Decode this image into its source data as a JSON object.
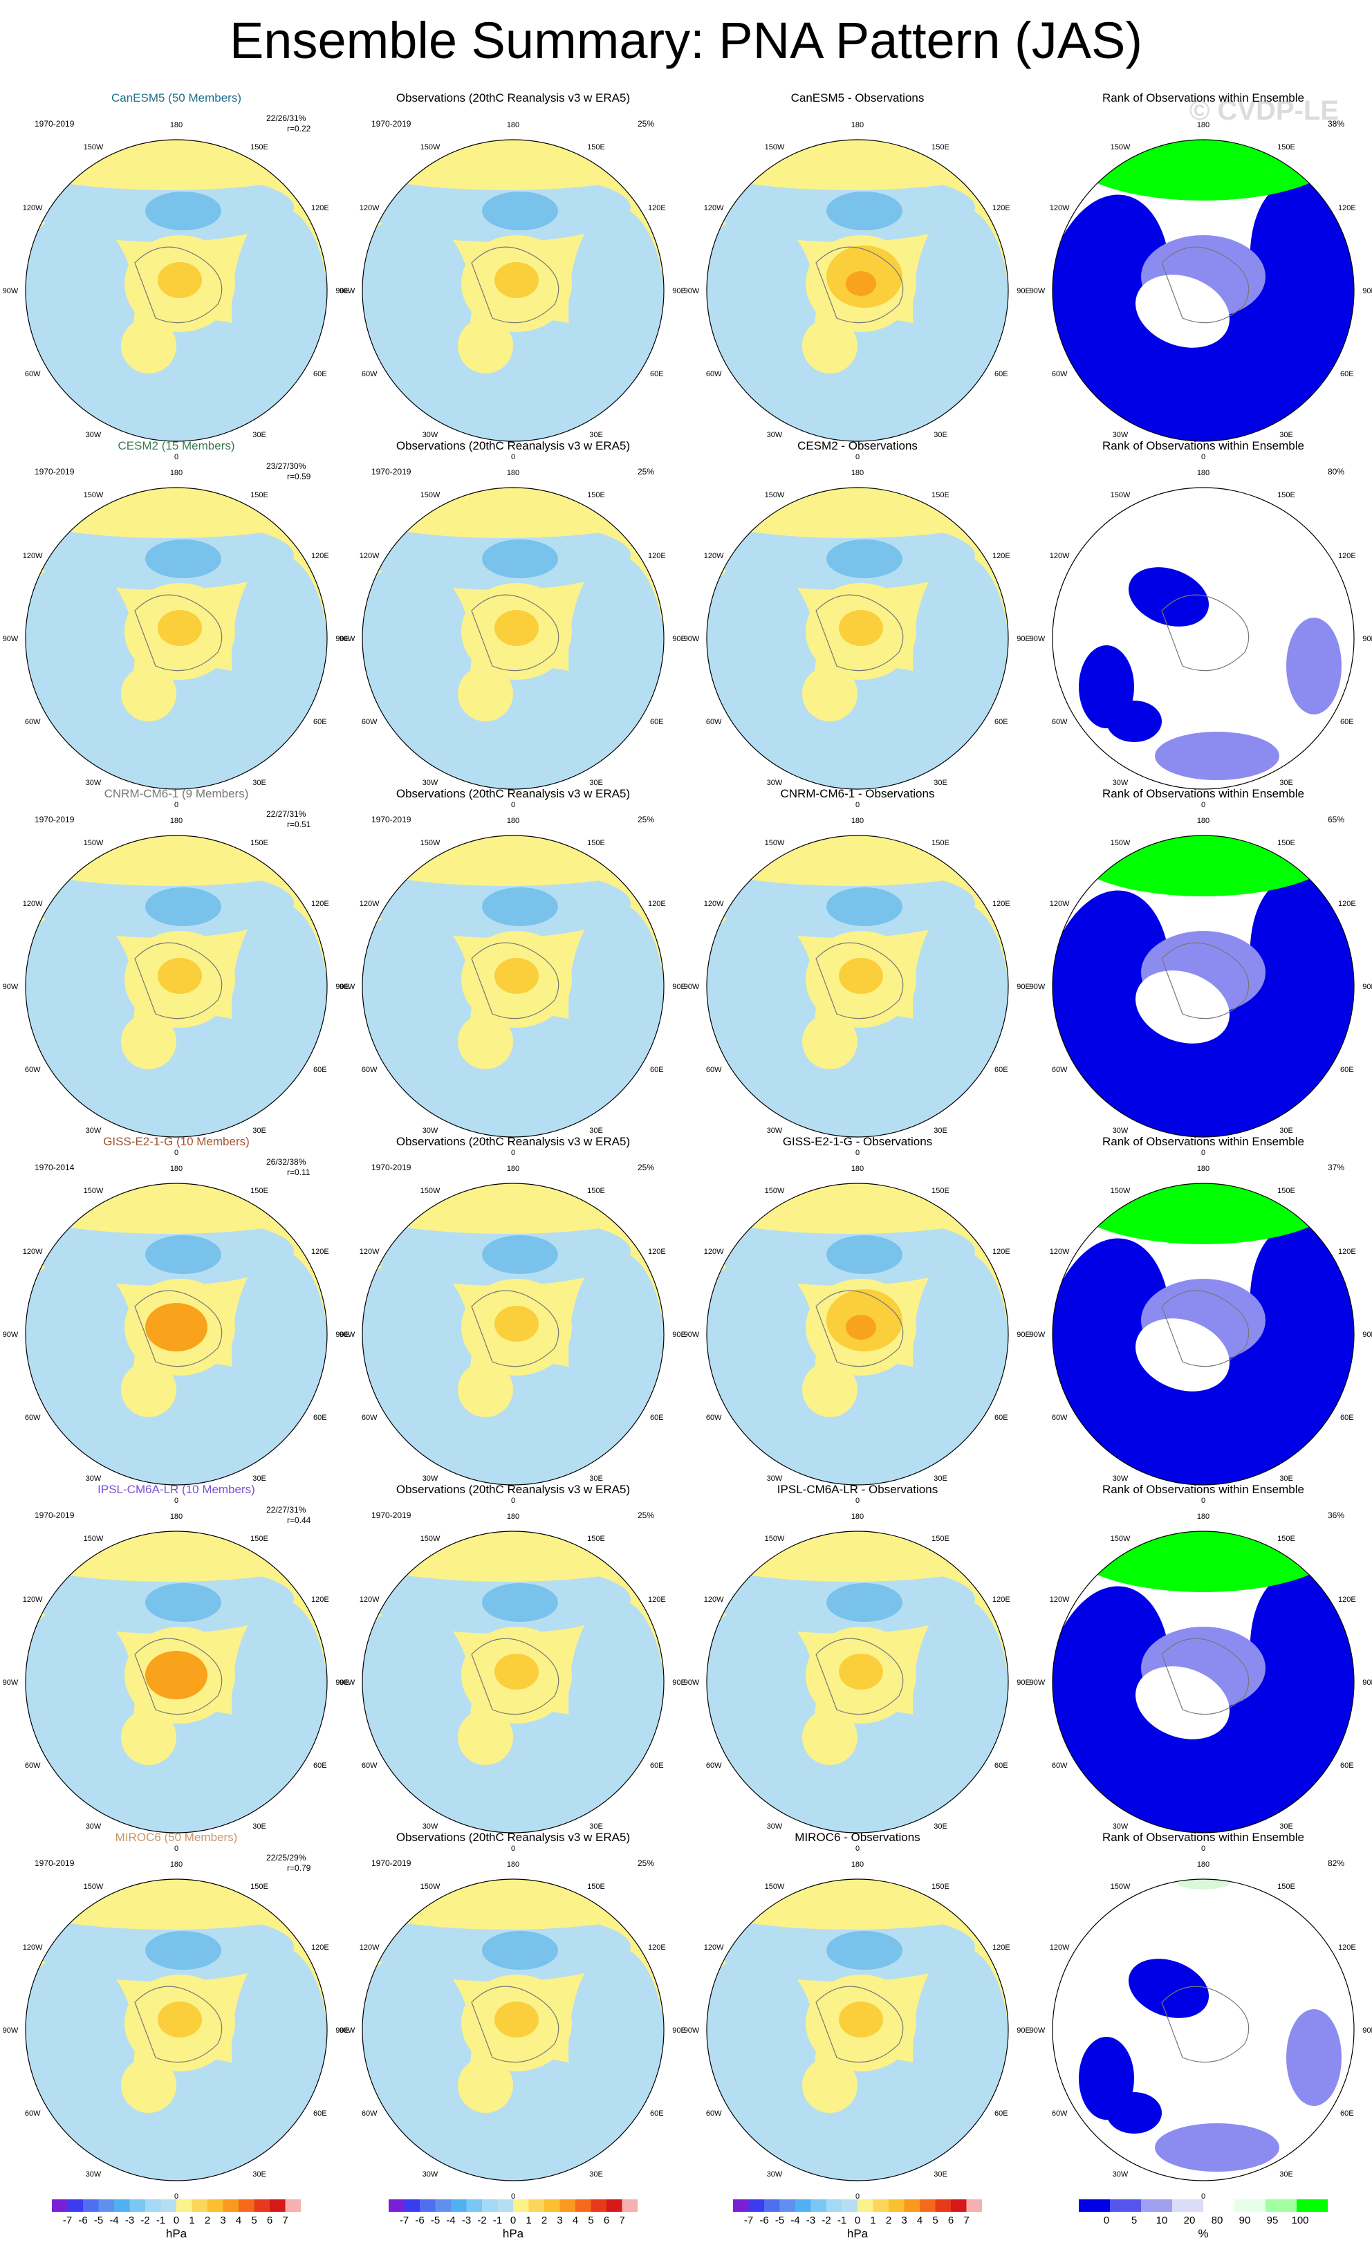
{
  "title": "Ensemble Summary: PNA Pattern (JAS)",
  "watermark": "© CVDP-LE",
  "colors": {
    "pos1": "#fbf28a",
    "pos2": "#fbcf3b",
    "pos3": "#f9a21b",
    "neg1": "#b6def2",
    "neg2": "#78c2ec",
    "rank_low": "#0000e6",
    "rank_lowmid": "#8c8cf0",
    "rank_mid": "#ffffff",
    "rank_high": "#00ff00"
  },
  "lon_labels": [
    "180",
    "150E",
    "120E",
    "90E",
    "60E",
    "30E",
    "0",
    "30W",
    "60W",
    "90W",
    "120W",
    "150W"
  ],
  "rows": [
    {
      "model": "CanESM5 (50 Members)",
      "model_color": "#1f6f8f",
      "period": "1970-2019",
      "stats": "22/26/31%",
      "corr": "r=0.22",
      "obs_title": "Observations (20thC Reanalysis v3 w ERA5)",
      "obs_period": "1970-2019",
      "obs_pct": "25%",
      "diff_title": "CanESM5 - Observations",
      "rank_title": "Rank of Observations within Ensemble",
      "rank_pct": "38%"
    },
    {
      "model": "CESM2 (15 Members)",
      "model_color": "#3d7a50",
      "period": "1970-2019",
      "stats": "23/27/30%",
      "corr": "r=0.59",
      "obs_title": "Observations (20thC Reanalysis v3 w ERA5)",
      "obs_period": "1970-2019",
      "obs_pct": "25%",
      "diff_title": "CESM2 - Observations",
      "rank_title": "Rank of Observations within Ensemble",
      "rank_pct": "80%"
    },
    {
      "model": "CNRM-CM6-1 (9 Members)",
      "model_color": "#777777",
      "period": "1970-2019",
      "stats": "22/27/31%",
      "corr": "r=0.51",
      "obs_title": "Observations (20thC Reanalysis v3 w ERA5)",
      "obs_period": "1970-2019",
      "obs_pct": "25%",
      "diff_title": "CNRM-CM6-1 - Observations",
      "rank_title": "Rank of Observations within Ensemble",
      "rank_pct": "65%"
    },
    {
      "model": "GISS-E2-1-G (10 Members)",
      "model_color": "#a0522d",
      "period": "1970-2014",
      "stats": "26/32/38%",
      "corr": "r=0.11",
      "obs_title": "Observations (20thC Reanalysis v3 w ERA5)",
      "obs_period": "1970-2019",
      "obs_pct": "25%",
      "diff_title": "GISS-E2-1-G - Observations",
      "rank_title": "Rank of Observations within Ensemble",
      "rank_pct": "37%"
    },
    {
      "model": "IPSL-CM6A-LR (10 Members)",
      "model_color": "#7b4fd6",
      "period": "1970-2019",
      "stats": "22/27/31%",
      "corr": "r=0.44",
      "obs_title": "Observations (20thC Reanalysis v3 w ERA5)",
      "obs_period": "1970-2019",
      "obs_pct": "25%",
      "diff_title": "IPSL-CM6A-LR - Observations",
      "rank_title": "Rank of Observations within Ensemble",
      "rank_pct": "36%"
    },
    {
      "model": "MIROC6 (50 Members)",
      "model_color": "#c8966a",
      "period": "1970-2019",
      "stats": "22/25/29%",
      "corr": "r=0.79",
      "obs_title": "Observations (20thC Reanalysis v3 w ERA5)",
      "obs_period": "1970-2019",
      "obs_pct": "25%",
      "diff_title": "MIROC6 - Observations",
      "rank_title": "Rank of Observations within Ensemble",
      "rank_pct": "82%"
    }
  ],
  "chart_data": {
    "type": "heatmap",
    "description_source": "polar stereographic maps, Northern Hemisphere",
    "pattern_colorbar": {
      "unit": "hPa",
      "ticks": [
        "-7",
        "-6",
        "-5",
        "-4",
        "-3",
        "-2",
        "-1",
        "0",
        "1",
        "2",
        "3",
        "4",
        "5",
        "6",
        "7"
      ],
      "colors": [
        "#7a1fd6",
        "#3b3bf0",
        "#4f6ff0",
        "#5f90f0",
        "#50b0f0",
        "#79c7f2",
        "#a3d9f4",
        "#b6def2",
        "#fbf28a",
        "#fbd65a",
        "#fbc02f",
        "#f99a1e",
        "#f46a1a",
        "#e83a1a",
        "#d61818",
        "#f7b0b0"
      ]
    },
    "rank_colorbar": {
      "unit": "%",
      "ticks": [
        "0",
        "5",
        "10",
        "20",
        "80",
        "90",
        "95",
        "100"
      ],
      "colors": [
        "#0000e6",
        "#5555ee",
        "#a0a0f0",
        "#dcdcf8",
        "#ffffff",
        "#e6ffe6",
        "#a0ffa0",
        "#00ff00"
      ]
    }
  }
}
